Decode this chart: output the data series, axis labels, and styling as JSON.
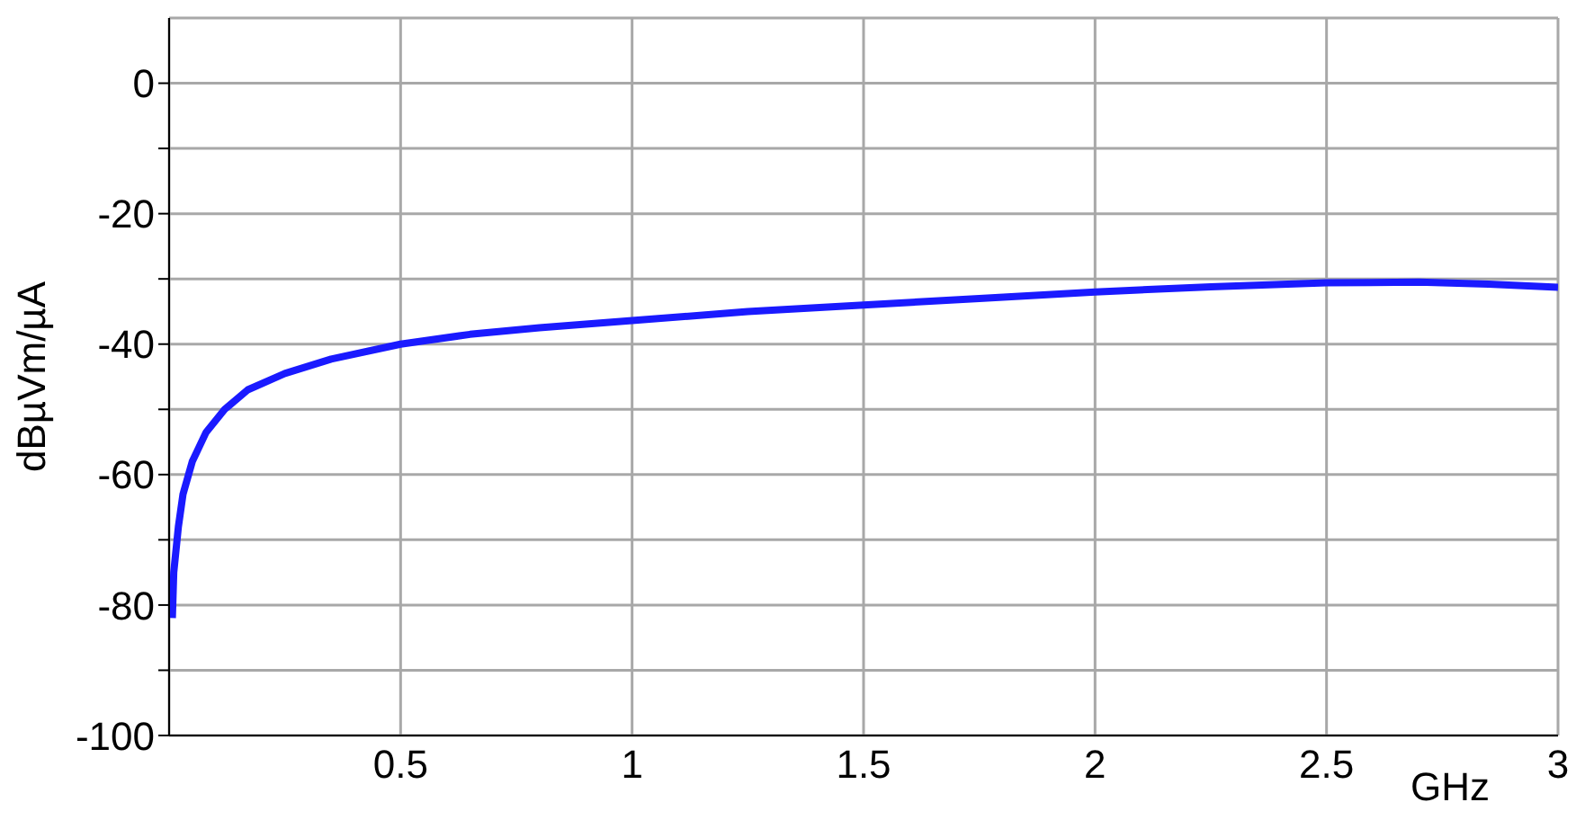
{
  "chart_data": {
    "type": "line",
    "xlabel": "GHz",
    "ylabel": "dBµVm/µA",
    "x": [
      0.007,
      0.01,
      0.02,
      0.03,
      0.05,
      0.08,
      0.12,
      0.17,
      0.25,
      0.35,
      0.5,
      0.65,
      0.8,
      1.0,
      1.25,
      1.5,
      1.75,
      2.0,
      2.25,
      2.5,
      2.7,
      2.85,
      3.0
    ],
    "series": [
      {
        "color": "#1a1aff",
        "values": [
          -82,
          -75,
          -68,
          -63,
          -58,
          -53.5,
          -50,
          -47,
          -44.5,
          -42.3,
          -40,
          -38.5,
          -37.5,
          -36.4,
          -35,
          -34,
          -33,
          -32,
          -31.2,
          -30.6,
          -30.5,
          -30.8,
          -31.3
        ]
      }
    ],
    "xlim": [
      0,
      3
    ],
    "xticks": [
      0.5,
      1,
      1.5,
      2,
      2.5,
      3
    ],
    "ylim": [
      -100,
      10
    ],
    "yticks": [
      -100,
      {
        "value": -90,
        "label": null
      },
      -80,
      {
        "value": -70,
        "label": null
      },
      -60,
      {
        "value": -50,
        "label": null
      },
      -40,
      {
        "value": -30,
        "label": null
      },
      -20,
      {
        "value": -10,
        "label": null
      },
      0
    ],
    "grid": true,
    "marker": "none",
    "line_style": "solid"
  }
}
